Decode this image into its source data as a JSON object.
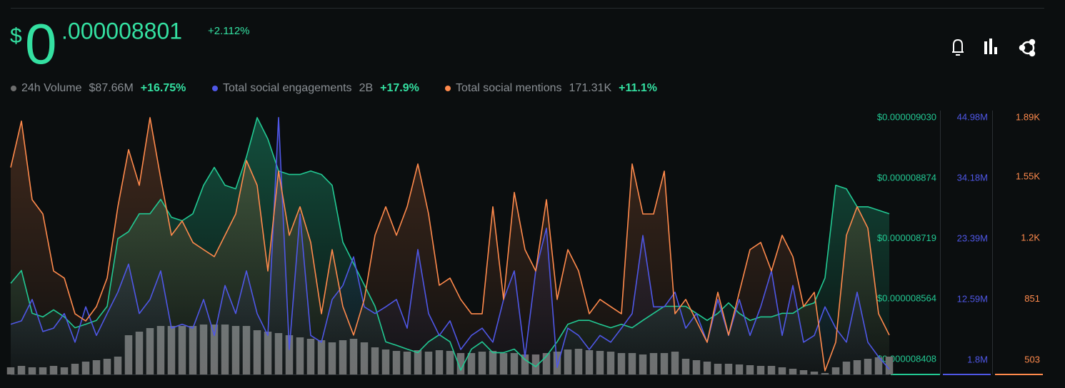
{
  "header": {
    "currency": "$",
    "integer": "0",
    "fraction": ".000008801",
    "change": "+2.112%"
  },
  "chart_data": {
    "type": "line",
    "categories": [
      null,
      null,
      null,
      null,
      null,
      null,
      null,
      null,
      null,
      null,
      null,
      null,
      null,
      null,
      null,
      null,
      null,
      null,
      null,
      null,
      null,
      null,
      null,
      null,
      null,
      null,
      null,
      null,
      null,
      null,
      null,
      null,
      null,
      null,
      null,
      null,
      null,
      null,
      null,
      null,
      null,
      null,
      null,
      null,
      null,
      null,
      null,
      null,
      null,
      null,
      null,
      null,
      null,
      null,
      null,
      null,
      null,
      null,
      null,
      null,
      null,
      null,
      null,
      null,
      null,
      null,
      null,
      null,
      null,
      null,
      null,
      null,
      null,
      null,
      null,
      null,
      null,
      null,
      null,
      null,
      null,
      null,
      null
    ],
    "series": [
      {
        "name": "24h Volume",
        "total": "$87.66M",
        "change": "+16.75%",
        "type": "bar",
        "axis": "y4",
        "color": "#6e6e6e",
        "values": [
          250000,
          300000,
          250000,
          250000,
          300000,
          250000,
          375000,
          450000,
          500000,
          550000,
          625000,
          1375000,
          1500000,
          1625000,
          1700000,
          1700000,
          1700000,
          1700000,
          1750000,
          1750000,
          1750000,
          1700000,
          1700000,
          1550000,
          1500000,
          1450000,
          1375000,
          1300000,
          1250000,
          1200000,
          1125000,
          1200000,
          1250000,
          1125000,
          950000,
          875000,
          825000,
          800000,
          850000,
          800000,
          850000,
          825000,
          750000,
          750000,
          800000,
          825000,
          750000,
          750000,
          700000,
          700000,
          750000,
          800000,
          875000,
          900000,
          850000,
          825000,
          800000,
          750000,
          750000,
          700000,
          750000,
          750000,
          800000,
          550000,
          500000,
          450000,
          375000,
          375000,
          350000,
          325000,
          300000,
          300000,
          250000,
          200000,
          150000,
          100000,
          50000,
          250000,
          450000,
          500000,
          550000,
          600000,
          625000
        ]
      },
      {
        "name": "Total social engagements",
        "total": "2B",
        "change": "+17.9%",
        "type": "line",
        "axis": "y2",
        "color": "#4f57e6",
        "values": [
          8200000,
          8800000,
          12600000,
          6900000,
          7500000,
          10100000,
          5000000,
          11300000,
          6200000,
          10100000,
          13900000,
          18900000,
          10100000,
          12600000,
          17700000,
          7500000,
          8200000,
          7500000,
          12600000,
          6200000,
          15100000,
          10100000,
          17700000,
          10100000,
          6200000,
          45000000,
          3700000,
          27800000,
          6200000,
          5000000,
          12600000,
          15100000,
          20200000,
          11300000,
          10100000,
          11300000,
          12600000,
          7500000,
          21500000,
          10100000,
          6200000,
          8800000,
          3700000,
          6200000,
          7500000,
          5000000,
          12600000,
          17700000,
          2400000,
          17700000,
          25300000,
          500000,
          7500000,
          6200000,
          3700000,
          6200000,
          5000000,
          7500000,
          10100000,
          24000000,
          11300000,
          11300000,
          13900000,
          7500000,
          10100000,
          5000000,
          12600000,
          6200000,
          12600000,
          6200000,
          11300000,
          17700000,
          6200000,
          15100000,
          5000000,
          6200000,
          11300000,
          7500000,
          5000000,
          13900000,
          5000000,
          2400000,
          200000
        ]
      },
      {
        "name": "Total social mentions",
        "total": "171.31K",
        "change": "+11.1%",
        "type": "line",
        "axis": "y3",
        "color": "#ff8a4c",
        "values": [
          1605,
          1870,
          1421,
          1339,
          1013,
          972,
          768,
          727,
          809,
          972,
          1380,
          1707,
          1503,
          1890,
          1543,
          1217,
          1299,
          1176,
          1135,
          1095,
          1217,
          1339,
          1645,
          1503,
          1013,
          1584,
          1217,
          1380,
          1176,
          768,
          1135,
          809,
          646,
          850,
          1217,
          1380,
          1217,
          1380,
          1625,
          1339,
          931,
          972,
          850,
          768,
          768,
          1380,
          850,
          1462,
          1135,
          1013,
          1421,
          850,
          1135,
          1013,
          768,
          850,
          809,
          768,
          1625,
          1339,
          1339,
          1584,
          768,
          850,
          727,
          605,
          891,
          646,
          891,
          1135,
          1176,
          1013,
          1217,
          1095,
          809,
          891,
          442,
          605,
          1217,
          1380,
          1258,
          768,
          646
        ]
      },
      {
        "type": "line",
        "axis": "y",
        "color": "#22c993",
        "values": [
          8.604e-06,
          8.637e-06,
          8.527e-06,
          8.518e-06,
          8.536e-06,
          8.518e-06,
          8.49e-06,
          8.499e-06,
          8.509e-06,
          8.545e-06,
          8.719e-06,
          8.737e-06,
          8.783e-06,
          8.783e-06,
          8.82e-06,
          8.774e-06,
          8.765e-06,
          8.783e-06,
          8.856e-06,
          8.902e-06,
          8.856e-06,
          8.847e-06,
          8.929e-06,
          9.03e-06,
          8.975e-06,
          8.893e-06,
          8.884e-06,
          8.884e-06,
          8.893e-06,
          8.884e-06,
          8.856e-06,
          8.71e-06,
          8.655e-06,
          8.6e-06,
          8.545e-06,
          8.454e-06,
          8.445e-06,
          8.435e-06,
          8.426e-06,
          8.454e-06,
          8.472e-06,
          8.454e-06,
          8.381e-06,
          8.435e-06,
          8.454e-06,
          8.426e-06,
          8.426e-06,
          8.435e-06,
          8.408e-06,
          8.39e-06,
          8.417e-06,
          8.454e-06,
          8.499e-06,
          8.509e-06,
          8.509e-06,
          8.499e-06,
          8.49e-06,
          8.499e-06,
          8.49e-06,
          8.509e-06,
          8.527e-06,
          8.545e-06,
          8.545e-06,
          8.545e-06,
          8.527e-06,
          8.509e-06,
          8.527e-06,
          8.554e-06,
          8.527e-06,
          8.509e-06,
          8.518e-06,
          8.518e-06,
          8.527e-06,
          8.527e-06,
          8.545e-06,
          8.554e-06,
          8.618e-06,
          8.856e-06,
          8.847e-06,
          8.801e-06,
          8.801e-06,
          8.792e-06,
          8.783e-06
        ]
      }
    ],
    "ylim": [
      8.37e-06,
      9.039e-06
    ],
    "yticks": [
      {
        "value": 8.408e-06,
        "label": "$0.000008408"
      },
      {
        "value": 8.564e-06,
        "label": "$0.000008564"
      },
      {
        "value": 8.719e-06,
        "label": "$0.000008719"
      },
      {
        "value": 8.874e-06,
        "label": "$0.000008874"
      },
      {
        "value": 9.03e-06,
        "label": "$0.000009030"
      }
    ],
    "y2lim": [
      -740000,
      45610000
    ],
    "y2ticks": [
      {
        "value": 1800000,
        "label": "1.8M"
      },
      {
        "value": 12590000,
        "label": "12.59M"
      },
      {
        "value": 23390000,
        "label": "23.39M"
      },
      {
        "value": 34180000,
        "label": "34.18M"
      },
      {
        "value": 44980000,
        "label": "44.98M"
      }
    ],
    "y3lim": [
      421,
      1910
    ],
    "y3ticks": [
      503,
      851,
      {
        "value": 1200,
        "label": "1.2K"
      },
      {
        "value": 1550,
        "label": "1.55K"
      },
      {
        "value": 1890,
        "label": "1.89K"
      }
    ],
    "y4lim": [
      0,
      9125000
    ]
  }
}
